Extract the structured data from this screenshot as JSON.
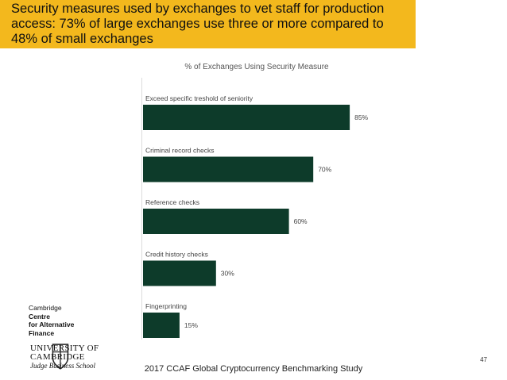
{
  "slide": {
    "banner_text": "Security measures used by exchanges to vet staff for production access: 73% of large exchanges use three or more compared to 48% of small exchanges",
    "footer": "2017 CCAF Global Cryptocurrency Benchmarking Study",
    "page_number": "47",
    "banner_color": "#f3b81d"
  },
  "logos": {
    "ccaf_line1": "Cambridge",
    "ccaf_line2": "Centre",
    "ccaf_line3": "for Alternative",
    "ccaf_line4": "Finance",
    "uni_line1": "UNIVERSITY OF",
    "uni_line2": "CAMBRIDGE",
    "uni_line3": "Judge Business School"
  },
  "chart_data": {
    "type": "bar",
    "orientation": "horizontal",
    "title": "% of Exchanges Using Security Measure",
    "categories": [
      "Exceed specific treshold of seniority",
      "Criminal record checks",
      "Reference checks",
      "Credit history checks",
      "Fingerprinting"
    ],
    "values": [
      85,
      70,
      60,
      30,
      15
    ],
    "data_labels": [
      "85%",
      "70%",
      "60%",
      "30%",
      "15%"
    ],
    "xlim": [
      0,
      100
    ],
    "bar_color": "#0d3b2a",
    "grid": false,
    "legend": "none"
  }
}
